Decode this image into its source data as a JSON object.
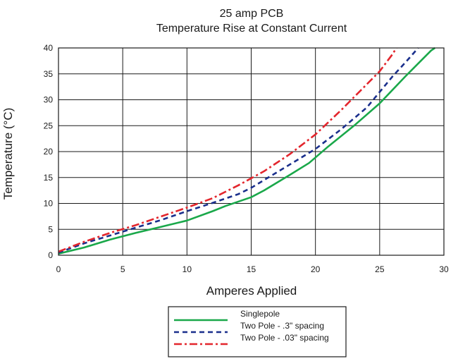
{
  "chart_data": {
    "type": "line",
    "title": "25 amp PCB",
    "subtitle": "Temperature Rise at Constant Current",
    "xlabel": "Amperes Applied",
    "ylabel": "Temperature (°C)",
    "xlim": [
      0,
      30
    ],
    "ylim": [
      0,
      40
    ],
    "x_ticks": [
      0,
      5,
      10,
      15,
      20,
      25,
      30
    ],
    "y_ticks": [
      0,
      5,
      10,
      15,
      20,
      25,
      30,
      35,
      40
    ],
    "grid": true,
    "legend_position": "bottom-center",
    "series": [
      {
        "name": "Singlepole",
        "color": "#1aa84a",
        "dash": "solid",
        "points": [
          [
            0,
            0.3
          ],
          [
            2,
            1.5
          ],
          [
            4,
            3
          ],
          [
            6,
            4.3
          ],
          [
            8,
            5.5
          ],
          [
            10,
            6.7
          ],
          [
            12,
            8.5
          ],
          [
            13,
            9.5
          ],
          [
            15,
            11.2
          ],
          [
            16,
            12.5
          ],
          [
            18,
            15.5
          ],
          [
            19.5,
            17.8
          ],
          [
            21,
            21
          ],
          [
            23,
            25
          ],
          [
            25,
            29.3
          ],
          [
            27,
            34.5
          ],
          [
            28,
            37
          ],
          [
            29,
            39.5
          ],
          [
            29.3,
            40
          ]
        ]
      },
      {
        "name": "Two Pole - .3\" spacing",
        "color": "#1a2f8c",
        "dash": "dashed",
        "points": [
          [
            0,
            0.5
          ],
          [
            2,
            2.3
          ],
          [
            4,
            3.8
          ],
          [
            6,
            5.3
          ],
          [
            8,
            6.8
          ],
          [
            10,
            8.5
          ],
          [
            12,
            10.1
          ],
          [
            14,
            11.8
          ],
          [
            15,
            13
          ],
          [
            16,
            14.5
          ],
          [
            18,
            17.5
          ],
          [
            20,
            20.5
          ],
          [
            22,
            24.3
          ],
          [
            24,
            28.5
          ],
          [
            25,
            31.5
          ],
          [
            26,
            34.5
          ],
          [
            27,
            37.2
          ],
          [
            28,
            40
          ]
        ]
      },
      {
        "name": "Two Pole - .03\" spacing",
        "color": "#e3262d",
        "dash": "dashdot",
        "points": [
          [
            0,
            0.7
          ],
          [
            2,
            2.6
          ],
          [
            4,
            4.3
          ],
          [
            6,
            5.8
          ],
          [
            8,
            7.5
          ],
          [
            10,
            9.2
          ],
          [
            12,
            11
          ],
          [
            14,
            13.5
          ],
          [
            16,
            16.2
          ],
          [
            18,
            19.5
          ],
          [
            20,
            23.3
          ],
          [
            22,
            28
          ],
          [
            24,
            33
          ],
          [
            25,
            35.5
          ],
          [
            26,
            38.8
          ],
          [
            26.3,
            40
          ]
        ]
      }
    ]
  }
}
